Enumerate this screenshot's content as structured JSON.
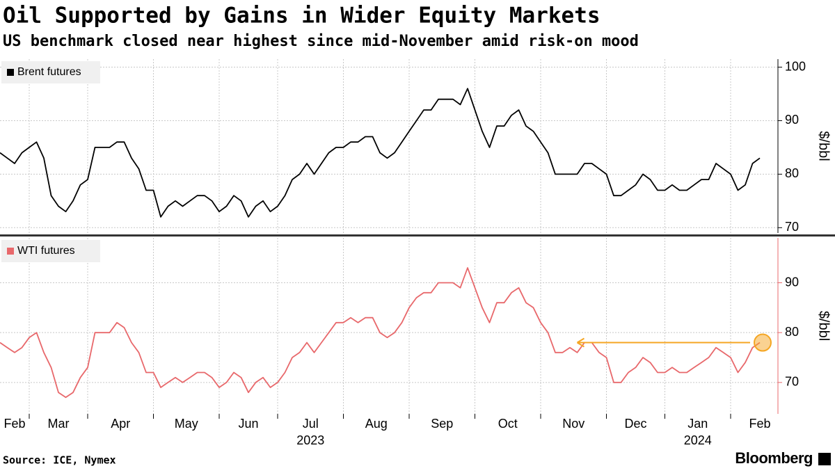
{
  "chart_data": [
    {
      "type": "line",
      "title": "Oil Supported by Gains in Wider Equity Markets",
      "subtitle": "US benchmark closed near highest since mid-November amid risk-on mood",
      "series": [
        {
          "name": "Brent futures",
          "color": "#000000",
          "values": [
            84,
            83,
            82,
            84,
            85,
            86,
            83,
            76,
            74,
            73,
            75,
            78,
            79,
            85,
            85,
            85,
            86,
            86,
            83,
            81,
            77,
            77,
            72,
            74,
            75,
            74,
            75,
            76,
            76,
            75,
            73,
            74,
            76,
            75,
            72,
            74,
            75,
            73,
            74,
            76,
            79,
            80,
            82,
            80,
            82,
            84,
            85,
            85,
            86,
            86,
            87,
            87,
            84,
            83,
            84,
            86,
            88,
            90,
            92,
            92,
            94,
            94,
            94,
            93,
            96,
            92,
            88,
            85,
            89,
            89,
            91,
            92,
            89,
            88,
            86,
            84,
            80,
            80,
            80,
            80,
            82,
            82,
            81,
            80,
            76,
            76,
            77,
            78,
            80,
            79,
            77,
            77,
            78,
            77,
            77,
            78,
            79,
            79,
            82,
            81,
            80,
            77,
            78,
            82,
            83
          ]
        }
      ],
      "ylim": [
        69,
        101.5
      ],
      "yticks": [
        70,
        80,
        90,
        100
      ],
      "y_label": "$/bbl",
      "grid": true
    },
    {
      "type": "line",
      "categories": [
        "Feb",
        null,
        null,
        null,
        "Mar",
        null,
        null,
        null,
        null,
        null,
        null,
        null,
        "Apr",
        null,
        null,
        null,
        null,
        null,
        null,
        null,
        null,
        "May",
        null,
        null,
        null,
        null,
        null,
        null,
        null,
        null,
        "Jun",
        null,
        null,
        null,
        null,
        null,
        null,
        null,
        "Jul",
        null,
        null,
        null,
        null,
        null,
        null,
        null,
        null,
        "Aug",
        null,
        null,
        null,
        null,
        null,
        null,
        null,
        null,
        "Sep",
        null,
        null,
        null,
        null,
        null,
        null,
        null,
        null,
        "Oct",
        null,
        null,
        null,
        null,
        null,
        null,
        null,
        null,
        "Nov",
        null,
        null,
        null,
        null,
        null,
        null,
        null,
        null,
        "Dec",
        null,
        null,
        null,
        null,
        null,
        null,
        null,
        "Jan",
        null,
        null,
        null,
        null,
        null,
        null,
        null,
        null,
        "Feb",
        null,
        null,
        null,
        null
      ],
      "x_group_labels": [
        null,
        null,
        null,
        null,
        null,
        null,
        null,
        null,
        null,
        null,
        null,
        null,
        null,
        null,
        null,
        null,
        null,
        null,
        null,
        null,
        null,
        null,
        null,
        null,
        null,
        null,
        null,
        null,
        null,
        null,
        null,
        null,
        null,
        null,
        null,
        null,
        null,
        null,
        "2023",
        null,
        null,
        null,
        null,
        null,
        null,
        null,
        null,
        null,
        null,
        null,
        null,
        null,
        null,
        null,
        null,
        null,
        null,
        null,
        null,
        null,
        null,
        null,
        null,
        null,
        null,
        null,
        null,
        null,
        null,
        null,
        null,
        null,
        null,
        null,
        null,
        null,
        null,
        null,
        null,
        null,
        null,
        null,
        null,
        null,
        null,
        null,
        null,
        null,
        null,
        null,
        null,
        "2024",
        null,
        null,
        null,
        null,
        null,
        null,
        null,
        null,
        null,
        null,
        null,
        null,
        null
      ],
      "series": [
        {
          "name": "WTI futures",
          "color": "#e8686b",
          "values": [
            78,
            77,
            76,
            77,
            79,
            80,
            76,
            73,
            68,
            67,
            68,
            71,
            73,
            80,
            80,
            80,
            82,
            81,
            78,
            76,
            72,
            72,
            69,
            70,
            71,
            70,
            71,
            72,
            72,
            71,
            69,
            70,
            72,
            71,
            68,
            70,
            71,
            69,
            70,
            72,
            75,
            76,
            78,
            76,
            78,
            80,
            82,
            82,
            83,
            82,
            83,
            83,
            80,
            79,
            80,
            82,
            85,
            87,
            88,
            88,
            90,
            90,
            90,
            89,
            93,
            89,
            85,
            82,
            86,
            86,
            88,
            89,
            86,
            85,
            82,
            80,
            76,
            76,
            77,
            76,
            78,
            78,
            76,
            75,
            70,
            70,
            72,
            73,
            75,
            74,
            72,
            72,
            73,
            72,
            72,
            73,
            74,
            75,
            77,
            76,
            75,
            72,
            74,
            77,
            78
          ]
        }
      ],
      "ylim": [
        63.7,
        99
      ],
      "yticks": [
        70,
        80,
        90
      ],
      "y_label": "$/bbl",
      "grid": true
    }
  ],
  "source": "Source: ICE, Nymex",
  "brand": "Bloomberg"
}
